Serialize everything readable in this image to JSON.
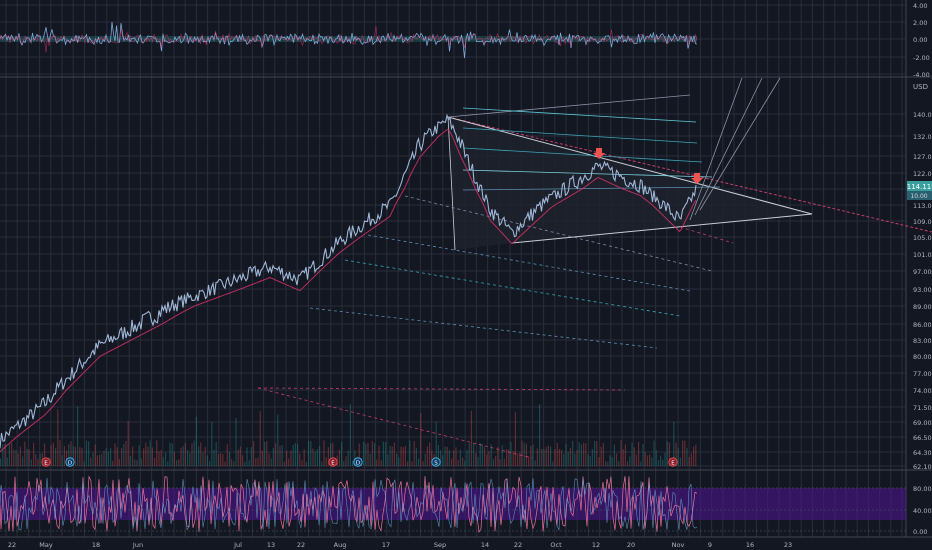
{
  "colors": {
    "background": "#131722",
    "grid": "#2a2e39",
    "price_line": "#9fb6d6",
    "price_glow": "#26a69a",
    "ma": "#e0336d",
    "channel": "#5b6f8f",
    "fib": "#3aa6b9",
    "oscillator_band": "#4a148c",
    "marker_red": "#ef5350",
    "marker_blue": "#2962ff",
    "axis_text": "#b2b5be",
    "last_price_tag": "#3a9e9e"
  },
  "top_panel": {
    "axis_labels": [
      "4.00",
      "2.00",
      "0.00",
      "-2.00",
      "-4.00"
    ]
  },
  "price_axis": {
    "currency": "USD",
    "labels": [
      "140.00",
      "132.00",
      "127.00",
      "122.00",
      "118.00",
      "113.00",
      "109.00",
      "105.00",
      "101.00",
      "97.00",
      "93.00",
      "89.00",
      "86.00",
      "83.00",
      "80.00",
      "77.00",
      "74.00",
      "71.50",
      "69.00",
      "66.50",
      "64.30",
      "62.10"
    ],
    "last_price": "114.11",
    "last_price_sub": "10.00"
  },
  "bottom_panel": {
    "axis_labels": [
      "80.00",
      "40.00",
      "0.00"
    ]
  },
  "time_axis": {
    "labels": [
      "22",
      "May",
      "18",
      "Jun",
      "Jul",
      "13",
      "22",
      "Aug",
      "17",
      "Sep",
      "14",
      "22",
      "Oct",
      "12",
      "20",
      "Nov",
      "9",
      "16",
      "23"
    ]
  },
  "event_markers": [
    {
      "type": "E",
      "color": "red"
    },
    {
      "type": "D",
      "color": "blue"
    },
    {
      "type": "E",
      "color": "red"
    },
    {
      "type": "D",
      "color": "blue"
    },
    {
      "type": "S",
      "color": "blue"
    },
    {
      "type": "E",
      "color": "red"
    }
  ],
  "chart_data": {
    "type": "line",
    "title": "",
    "xlabel": "",
    "ylabel": "",
    "price_series": {
      "x": [
        "Apr 22",
        "May 1",
        "May 18",
        "Jun 1",
        "Jun 15",
        "Jul 1",
        "Jul 13",
        "Jul 22",
        "Aug 1",
        "Aug 17",
        "Aug 28",
        "Sep 1",
        "Sep 14",
        "Sep 22",
        "Oct 1",
        "Oct 12",
        "Oct 20",
        "Nov 1",
        "Nov 4"
      ],
      "values": [
        66,
        72,
        82,
        86,
        90,
        94,
        98,
        95,
        104,
        113,
        130,
        138,
        112,
        106,
        115,
        124,
        119,
        109,
        118
      ]
    },
    "ylim": [
      62,
      150
    ]
  }
}
